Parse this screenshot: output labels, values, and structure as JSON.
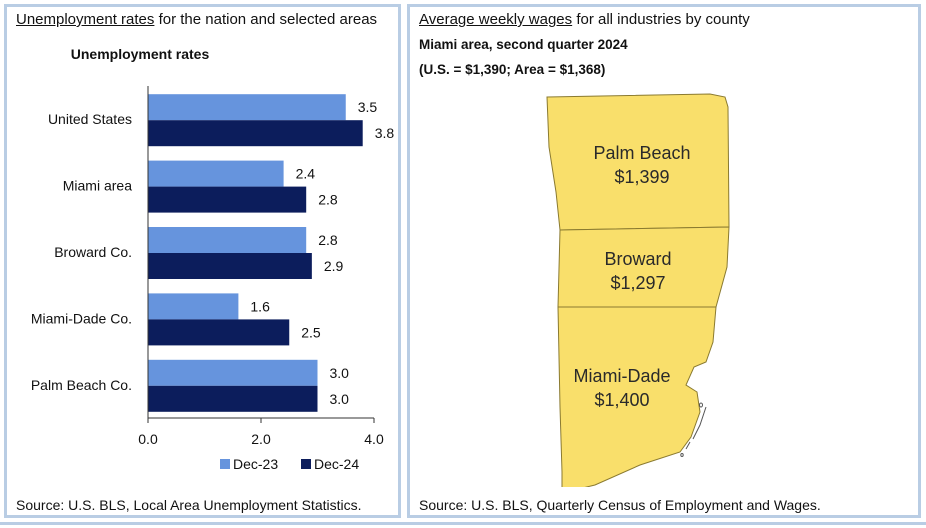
{
  "left_panel": {
    "title_underlined": "Unemployment rates",
    "title_rest": " for the nation and selected areas",
    "source": "Source: U.S. BLS, Local Area Unemployment Statistics."
  },
  "right_panel": {
    "title_underlined": "Average weekly wages",
    "title_rest": " for all industries by county",
    "subtitle1": "Miami area, second quarter 2024",
    "subtitle2": "(U.S. = $1,390; Area = $1,368)",
    "source": "Source: U.S. BLS, Quarterly Census of Employment and Wages.",
    "map_fill": "#f9df6b",
    "counties": [
      {
        "name": "Palm Beach",
        "wage": "$1,399"
      },
      {
        "name": "Broward",
        "wage": "$1,297"
      },
      {
        "name": "Miami-Dade",
        "wage": "$1,400"
      }
    ]
  },
  "chart_data": {
    "type": "bar",
    "orientation": "horizontal",
    "title": "Unemployment rates",
    "categories": [
      "United States",
      "Miami area",
      "Broward Co.",
      "Miami-Dade Co.",
      "Palm Beach Co."
    ],
    "series": [
      {
        "name": "Dec-23",
        "color": "#6694dd",
        "values": [
          3.5,
          2.4,
          2.8,
          1.6,
          3.0
        ],
        "labels": [
          "3.5",
          "2.4",
          "2.8",
          "1.6",
          "3.0"
        ]
      },
      {
        "name": "Dec-24",
        "color": "#0c1d5c",
        "values": [
          3.8,
          2.8,
          2.9,
          2.5,
          3.0
        ],
        "labels": [
          "3.8",
          "2.8",
          "2.9",
          "2.5",
          "3.0"
        ]
      }
    ],
    "xlim": [
      0,
      4
    ],
    "ticks": [
      0,
      2,
      4
    ],
    "tick_labels": [
      "0.0",
      "2.0",
      "4.0"
    ],
    "legend_position": "bottom"
  }
}
